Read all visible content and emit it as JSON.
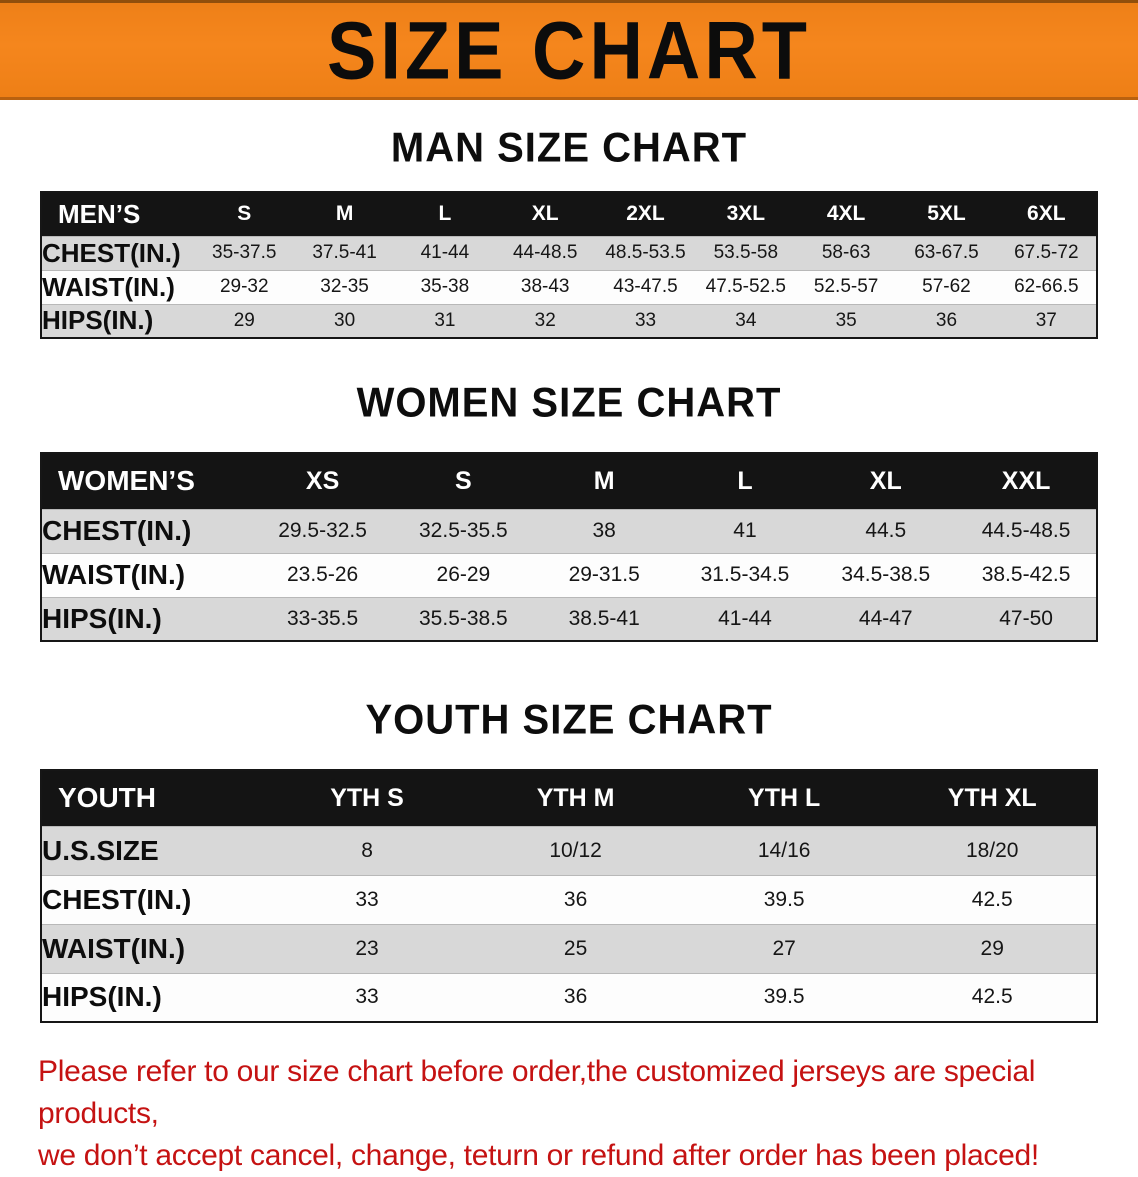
{
  "banner": {
    "title": "SIZE CHART"
  },
  "colors": {
    "banner_bg": "#f5861d",
    "header_bg": "#141414",
    "row_shade": "#d8d8d8",
    "footer_red": "#c51212"
  },
  "chart_data": [
    {
      "type": "table",
      "title": "MAN SIZE CHART",
      "corner_label": "MEN’S",
      "columns": [
        "S",
        "M",
        "L",
        "XL",
        "2XL",
        "3XL",
        "4XL",
        "5XL",
        "6XL"
      ],
      "rows": [
        {
          "label": "CHEST(IN.)",
          "values": [
            "35-37.5",
            "37.5-41",
            "41-44",
            "44-48.5",
            "48.5-53.5",
            "53.5-58",
            "58-63",
            "63-67.5",
            "67.5-72"
          ]
        },
        {
          "label": "WAIST(IN.)",
          "values": [
            "29-32",
            "32-35",
            "35-38",
            "38-43",
            "43-47.5",
            "47.5-52.5",
            "52.5-57",
            "57-62",
            "62-66.5"
          ]
        },
        {
          "label": "HIPS(IN.)",
          "values": [
            "29",
            "30",
            "31",
            "32",
            "33",
            "34",
            "35",
            "36",
            "37"
          ]
        }
      ]
    },
    {
      "type": "table",
      "title": "WOMEN SIZE CHART",
      "corner_label": "WOMEN’S",
      "columns": [
        "XS",
        "S",
        "M",
        "L",
        "XL",
        "XXL"
      ],
      "rows": [
        {
          "label": "CHEST(IN.)",
          "values": [
            "29.5-32.5",
            "32.5-35.5",
            "38",
            "41",
            "44.5",
            "44.5-48.5"
          ]
        },
        {
          "label": "WAIST(IN.)",
          "values": [
            "23.5-26",
            "26-29",
            "29-31.5",
            "31.5-34.5",
            "34.5-38.5",
            "38.5-42.5"
          ]
        },
        {
          "label": "HIPS(IN.)",
          "values": [
            "33-35.5",
            "35.5-38.5",
            "38.5-41",
            "41-44",
            "44-47",
            "47-50"
          ]
        }
      ]
    },
    {
      "type": "table",
      "title": "YOUTH SIZE CHART",
      "corner_label": "YOUTH",
      "columns": [
        "YTH S",
        "YTH M",
        "YTH L",
        "YTH XL"
      ],
      "rows": [
        {
          "label": "U.S.SIZE",
          "values": [
            "8",
            "10/12",
            "14/16",
            "18/20"
          ]
        },
        {
          "label": "CHEST(IN.)",
          "values": [
            "33",
            "36",
            "39.5",
            "42.5"
          ]
        },
        {
          "label": "WAIST(IN.)",
          "values": [
            "23",
            "25",
            "27",
            "29"
          ]
        },
        {
          "label": "HIPS(IN.)",
          "values": [
            "33",
            "36",
            "39.5",
            "42.5"
          ]
        }
      ]
    }
  ],
  "footer": {
    "line1": "Please refer to our size chart before order,the customized jerseys are special products,",
    "line2": "we don’t accept cancel, change, teturn or refund after order has been placed!"
  }
}
